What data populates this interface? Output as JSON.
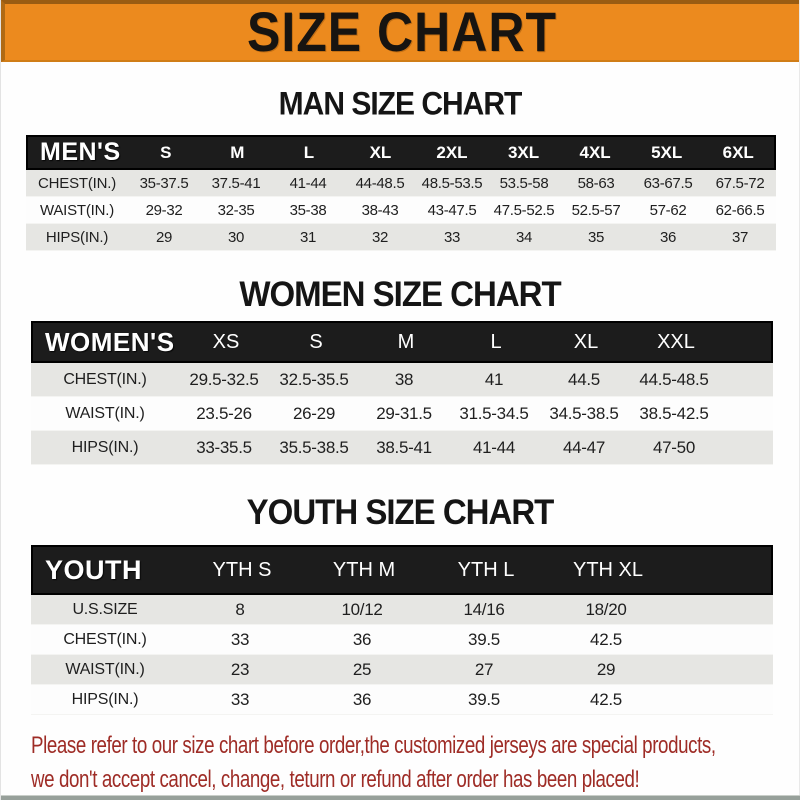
{
  "banner": {
    "title": "SIZE CHART"
  },
  "colors": {
    "banner_orange": "#ec8a1e",
    "header_bar_black": "#1c1c1c",
    "row_gray": "#e6e6e3",
    "row_white": "#fdfdfd",
    "note_red": "#9e2c26"
  },
  "sections": {
    "men": {
      "heading": "MAN SIZE CHART",
      "table": {
        "label": "MEN'S",
        "columns": [
          "S",
          "M",
          "L",
          "XL",
          "2XL",
          "3XL",
          "4XL",
          "5XL",
          "6XL"
        ],
        "rows": [
          {
            "label": "CHEST(IN.)",
            "values": [
              "35-37.5",
              "37.5-41",
              "41-44",
              "44-48.5",
              "48.5-53.5",
              "53.5-58",
              "58-63",
              "63-67.5",
              "67.5-72"
            ]
          },
          {
            "label": "WAIST(IN.)",
            "values": [
              "29-32",
              "32-35",
              "35-38",
              "38-43",
              "43-47.5",
              "47.5-52.5",
              "52.5-57",
              "57-62",
              "62-66.5"
            ]
          },
          {
            "label": "HIPS(IN.)",
            "values": [
              "29",
              "30",
              "31",
              "32",
              "33",
              "34",
              "35",
              "36",
              "37"
            ]
          }
        ]
      }
    },
    "women": {
      "heading": "WOMEN SIZE CHART",
      "table": {
        "label": "WOMEN'S",
        "columns": [
          "XS",
          "S",
          "M",
          "L",
          "XL",
          "XXL"
        ],
        "rows": [
          {
            "label": "CHEST(IN.)",
            "values": [
              "29.5-32.5",
              "32.5-35.5",
              "38",
              "41",
              "44.5",
              "44.5-48.5"
            ]
          },
          {
            "label": "WAIST(IN.)",
            "values": [
              "23.5-26",
              "26-29",
              "29-31.5",
              "31.5-34.5",
              "34.5-38.5",
              "38.5-42.5"
            ]
          },
          {
            "label": "HIPS(IN.)",
            "values": [
              "33-35.5",
              "35.5-38.5",
              "38.5-41",
              "41-44",
              "44-47",
              "47-50"
            ]
          }
        ]
      }
    },
    "youth": {
      "heading": "YOUTH SIZE CHART",
      "table": {
        "label": "YOUTH",
        "columns": [
          "YTH S",
          "YTH M",
          "YTH L",
          "YTH XL"
        ],
        "rows": [
          {
            "label": "U.S.SIZE",
            "values": [
              "8",
              "10/12",
              "14/16",
              "18/20"
            ]
          },
          {
            "label": "CHEST(IN.)",
            "values": [
              "33",
              "36",
              "39.5",
              "42.5"
            ]
          },
          {
            "label": "WAIST(IN.)",
            "values": [
              "23",
              "25",
              "27",
              "29"
            ]
          },
          {
            "label": "HIPS(IN.)",
            "values": [
              "33",
              "36",
              "39.5",
              "42.5"
            ]
          }
        ]
      }
    }
  },
  "footer": {
    "line1": "Please refer to our size chart before order,the customized jerseys are special products,",
    "line2": "we don't accept cancel, change, teturn or refund after order has been placed!"
  }
}
